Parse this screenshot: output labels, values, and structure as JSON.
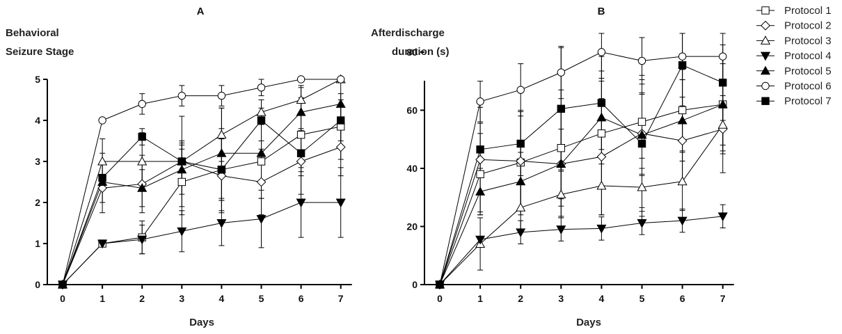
{
  "legend": {
    "entries": [
      {
        "label": "Protocol 1",
        "marker": "square-open"
      },
      {
        "label": "Protocol 2",
        "marker": "diamond-open"
      },
      {
        "label": "Protocol 3",
        "marker": "triangle-up-open"
      },
      {
        "label": "Protocol 4",
        "marker": "triangle-down-filled"
      },
      {
        "label": "Protocol 5",
        "marker": "triangle-up-filled"
      },
      {
        "label": "Protocol 6",
        "marker": "circle-open"
      },
      {
        "label": "Protocol 7",
        "marker": "square-filled"
      }
    ]
  },
  "chart_data": [
    {
      "panel": "A",
      "type": "line",
      "title": "A",
      "ylabel_lines": [
        "Behavioral",
        "Seizure Stage"
      ],
      "xlabel": "Days",
      "x": [
        0,
        1,
        2,
        3,
        4,
        5,
        6,
        7
      ],
      "xlim": [
        0,
        7
      ],
      "ylim": [
        0,
        5
      ],
      "yticks": [
        0,
        1,
        2,
        3,
        4,
        5
      ],
      "grid": false,
      "series": [
        {
          "name": "Protocol 1",
          "values": [
            0,
            1.0,
            1.15,
            2.5,
            2.8,
            3.0,
            3.65,
            3.85
          ],
          "error": [
            0,
            0,
            0.4,
            0.8,
            1.0,
            0.9,
            0.9,
            0.8
          ]
        },
        {
          "name": "Protocol 2",
          "values": [
            0,
            2.35,
            2.45,
            3.0,
            2.65,
            2.5,
            3.0,
            3.35
          ],
          "error": [
            0,
            0.6,
            0.7,
            0.5,
            0.9,
            0.8,
            0.8,
            0.7
          ]
        },
        {
          "name": "Protocol 3",
          "values": [
            0,
            3.0,
            3.0,
            3.0,
            3.65,
            4.2,
            4.5,
            5.0
          ],
          "error": [
            0,
            0.55,
            0.7,
            1.1,
            0.65,
            0.3,
            0.35,
            0
          ]
        },
        {
          "name": "Protocol 4",
          "values": [
            0,
            1.0,
            1.1,
            1.3,
            1.5,
            1.6,
            2.0,
            2.0
          ],
          "error": [
            0,
            0,
            0.35,
            0.5,
            0.55,
            0.7,
            0.85,
            0.85
          ]
        },
        {
          "name": "Protocol 5",
          "values": [
            0,
            2.5,
            2.35,
            2.8,
            3.2,
            3.2,
            4.2,
            4.4
          ],
          "error": [
            0,
            0.5,
            0.45,
            0.6,
            1.1,
            1.1,
            0.6,
            0.6
          ]
        },
        {
          "name": "Protocol 6",
          "values": [
            0,
            4.0,
            4.4,
            4.6,
            4.6,
            4.8,
            5.0,
            5.0
          ],
          "error": [
            0,
            0,
            0.25,
            0.25,
            0.25,
            0.2,
            0,
            0
          ]
        },
        {
          "name": "Protocol 7",
          "values": [
            0,
            2.6,
            3.6,
            3.0,
            2.8,
            4.0,
            3.2,
            4.0
          ],
          "error": [
            0,
            0.6,
            0.2,
            0.45,
            0.75,
            0.5,
            0.55,
            0.5
          ]
        }
      ]
    },
    {
      "panel": "B",
      "type": "line",
      "title": "B",
      "ylabel_lines": [
        "Afterdischarge",
        "duration (s)"
      ],
      "xlabel": "Days",
      "x": [
        0,
        1,
        2,
        3,
        4,
        5,
        6,
        7
      ],
      "xlim": [
        0,
        7
      ],
      "ylim": [
        0,
        85
      ],
      "yticks": [
        0,
        20,
        40,
        60,
        80
      ],
      "grid": false,
      "series": [
        {
          "name": "Protocol 1",
          "values": [
            0,
            38.0,
            42.0,
            47.0,
            52.0,
            56.0,
            60.0,
            62.0
          ],
          "error": [
            0,
            14,
            18,
            20,
            18,
            16,
            14,
            14
          ]
        },
        {
          "name": "Protocol 2",
          "values": [
            0,
            43.0,
            42.5,
            41.5,
            44.0,
            52.0,
            49.5,
            53.5
          ],
          "error": [
            0,
            18,
            17,
            18,
            20,
            14,
            15,
            15
          ]
        },
        {
          "name": "Protocol 3",
          "values": [
            0,
            14.0,
            26.5,
            31.0,
            34.0,
            33.5,
            35.5,
            55.0
          ],
          "error": [
            0,
            9,
            8,
            8,
            10,
            10,
            10,
            10
          ]
        },
        {
          "name": "Protocol 4",
          "values": [
            0,
            15.5,
            18.0,
            19.0,
            19.3,
            21.2,
            22.0,
            23.5
          ],
          "error": [
            0,
            0,
            4,
            4,
            4,
            4,
            4,
            4
          ]
        },
        {
          "name": "Protocol 5",
          "values": [
            0,
            32.0,
            35.5,
            41.5,
            57.5,
            51.5,
            56.5,
            62.0
          ],
          "error": [
            0,
            8,
            10,
            12,
            16,
            14,
            14,
            16
          ]
        },
        {
          "name": "Protocol 6",
          "values": [
            0,
            63.0,
            67.0,
            73.0,
            80.0,
            77.0,
            78.5,
            78.5
          ],
          "error": [
            0,
            7,
            9,
            9,
            9,
            8,
            8,
            8
          ]
        },
        {
          "name": "Protocol 7",
          "values": [
            0,
            46.5,
            48.5,
            60.5,
            62.5,
            48.5,
            75.5,
            69.5
          ],
          "error": [
            0,
            9,
            11,
            21,
            16,
            22,
            14,
            13
          ]
        }
      ]
    }
  ]
}
